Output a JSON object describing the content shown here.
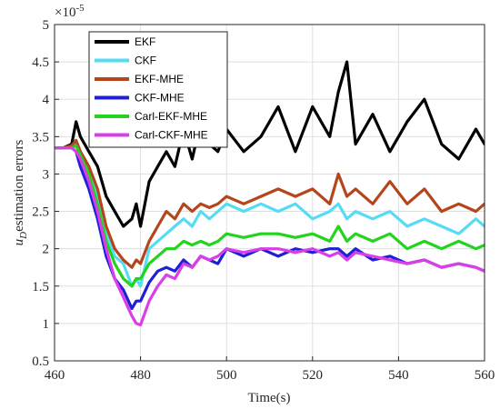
{
  "chart_data": {
    "type": "line",
    "title": "",
    "xlabel": "Time(s)",
    "ylabel_main": "u",
    "ylabel_sub": "D",
    "ylabel_rest": "estimation errors",
    "exponent_base": "×10",
    "exponent_power": "-5",
    "xlim": [
      460,
      560
    ],
    "ylim": [
      0.5,
      5
    ],
    "xticks": [
      460,
      480,
      500,
      520,
      540,
      560
    ],
    "yticks": [
      0.5,
      1,
      1.5,
      2,
      2.5,
      3,
      3.5,
      4,
      4.5,
      5
    ],
    "grid": true,
    "legend_position": "top-left",
    "x_samples": [
      460,
      462,
      464,
      465,
      466,
      468,
      470,
      472,
      474,
      476,
      478,
      479,
      480,
      482,
      484,
      486,
      488,
      490,
      492,
      494,
      496,
      498,
      500,
      504,
      508,
      512,
      516,
      520,
      524,
      526,
      528,
      530,
      534,
      538,
      542,
      546,
      550,
      554,
      558,
      560
    ],
    "series": [
      {
        "name": "EKF",
        "color": "#000000",
        "width": 3.2,
        "values": [
          3.35,
          3.35,
          3.4,
          3.7,
          3.5,
          3.3,
          3.1,
          2.7,
          2.5,
          2.3,
          2.4,
          2.6,
          2.3,
          2.9,
          3.1,
          3.3,
          3.1,
          3.6,
          3.2,
          3.7,
          3.4,
          3.3,
          3.6,
          3.3,
          3.5,
          3.9,
          3.3,
          3.9,
          3.5,
          4.1,
          4.5,
          3.4,
          3.8,
          3.3,
          3.7,
          4.0,
          3.4,
          3.2,
          3.6,
          3.4
        ]
      },
      {
        "name": "CKF",
        "color": "#55dcf5",
        "width": 3.2,
        "values": [
          3.35,
          3.35,
          3.35,
          3.4,
          3.3,
          3.1,
          2.7,
          2.2,
          1.9,
          1.8,
          1.5,
          1.6,
          1.5,
          2.0,
          2.1,
          2.2,
          2.3,
          2.4,
          2.3,
          2.5,
          2.4,
          2.5,
          2.6,
          2.5,
          2.6,
          2.5,
          2.6,
          2.4,
          2.5,
          2.6,
          2.4,
          2.5,
          2.4,
          2.5,
          2.3,
          2.4,
          2.3,
          2.2,
          2.4,
          2.3
        ]
      },
      {
        "name": "EKF-MHE",
        "color": "#b5451b",
        "width": 3.2,
        "values": [
          3.35,
          3.35,
          3.38,
          3.45,
          3.3,
          3.1,
          2.8,
          2.3,
          2.0,
          1.85,
          1.75,
          1.85,
          1.8,
          2.1,
          2.3,
          2.5,
          2.4,
          2.6,
          2.5,
          2.6,
          2.55,
          2.6,
          2.7,
          2.6,
          2.7,
          2.8,
          2.7,
          2.8,
          2.6,
          3.0,
          2.7,
          2.8,
          2.6,
          2.9,
          2.6,
          2.8,
          2.5,
          2.6,
          2.5,
          2.6
        ]
      },
      {
        "name": "CKF-MHE",
        "color": "#1f1fd6",
        "width": 3.2,
        "values": [
          3.35,
          3.35,
          3.35,
          3.3,
          3.1,
          2.8,
          2.4,
          1.9,
          1.6,
          1.45,
          1.2,
          1.3,
          1.3,
          1.55,
          1.7,
          1.75,
          1.7,
          1.85,
          1.75,
          1.9,
          1.85,
          1.8,
          2.0,
          1.9,
          2.0,
          1.9,
          2.0,
          1.95,
          2.0,
          2.0,
          1.9,
          2.0,
          1.85,
          1.9,
          1.8,
          1.85,
          1.75,
          1.8,
          1.75,
          1.7
        ]
      },
      {
        "name": "Carl-EKF-MHE",
        "color": "#22d41c",
        "width": 3.2,
        "values": [
          3.35,
          3.35,
          3.35,
          3.38,
          3.25,
          3.0,
          2.6,
          2.1,
          1.8,
          1.6,
          1.5,
          1.6,
          1.6,
          1.8,
          1.9,
          2.0,
          2.0,
          2.1,
          2.05,
          2.1,
          2.05,
          2.1,
          2.2,
          2.15,
          2.2,
          2.2,
          2.15,
          2.2,
          2.1,
          2.3,
          2.1,
          2.2,
          2.1,
          2.2,
          2.0,
          2.1,
          2.0,
          2.1,
          2.0,
          2.05
        ]
      },
      {
        "name": "Carl-CKF-MHE",
        "color": "#d93ee8",
        "width": 3.2,
        "values": [
          3.35,
          3.35,
          3.35,
          3.3,
          3.2,
          2.9,
          2.5,
          2.0,
          1.6,
          1.35,
          1.1,
          1.0,
          0.98,
          1.3,
          1.5,
          1.65,
          1.6,
          1.8,
          1.75,
          1.9,
          1.85,
          1.9,
          2.0,
          1.95,
          2.0,
          2.0,
          1.95,
          2.0,
          1.9,
          1.95,
          1.85,
          1.95,
          1.9,
          1.85,
          1.8,
          1.85,
          1.75,
          1.8,
          1.75,
          1.7
        ]
      }
    ]
  }
}
